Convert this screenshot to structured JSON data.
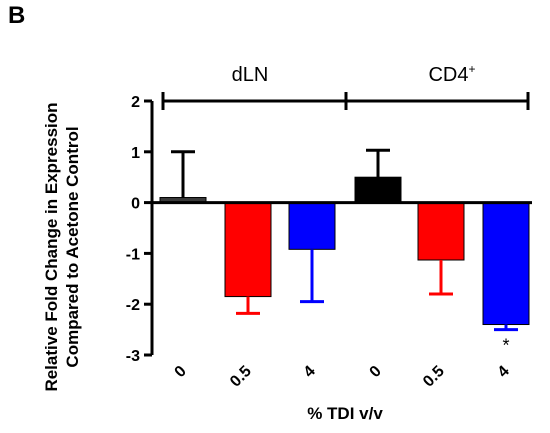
{
  "panel_label": "B",
  "groups": [
    {
      "name": "dLN",
      "sup": ""
    },
    {
      "name": "CD4",
      "sup": "+"
    }
  ],
  "chart_data": {
    "type": "bar",
    "title": "",
    "ylabel": "Relative Fold Change in Expression Compared to Acetone Control",
    "xlabel": "% TDI v/v",
    "ylim": [
      -3,
      2
    ],
    "yticks": [
      2,
      1,
      0,
      -1,
      -2,
      -3
    ],
    "categories": [
      "0",
      "0.5",
      "4",
      "0",
      "0.5",
      "4"
    ],
    "values": [
      0.1,
      -1.85,
      -0.92,
      0.5,
      -1.13,
      -2.4
    ],
    "errors": [
      0.9,
      0.33,
      1.03,
      0.53,
      0.67,
      0.1
    ],
    "error_direction": [
      "up",
      "down",
      "down",
      "up",
      "down",
      "down"
    ],
    "colors": [
      "#3a3a3a",
      "#ff0000",
      "#0000ff",
      "#000000",
      "#ff0000",
      "#0000ff"
    ],
    "annotations": [
      "",
      "",
      "",
      "",
      "",
      "*"
    ],
    "grid": false
  }
}
